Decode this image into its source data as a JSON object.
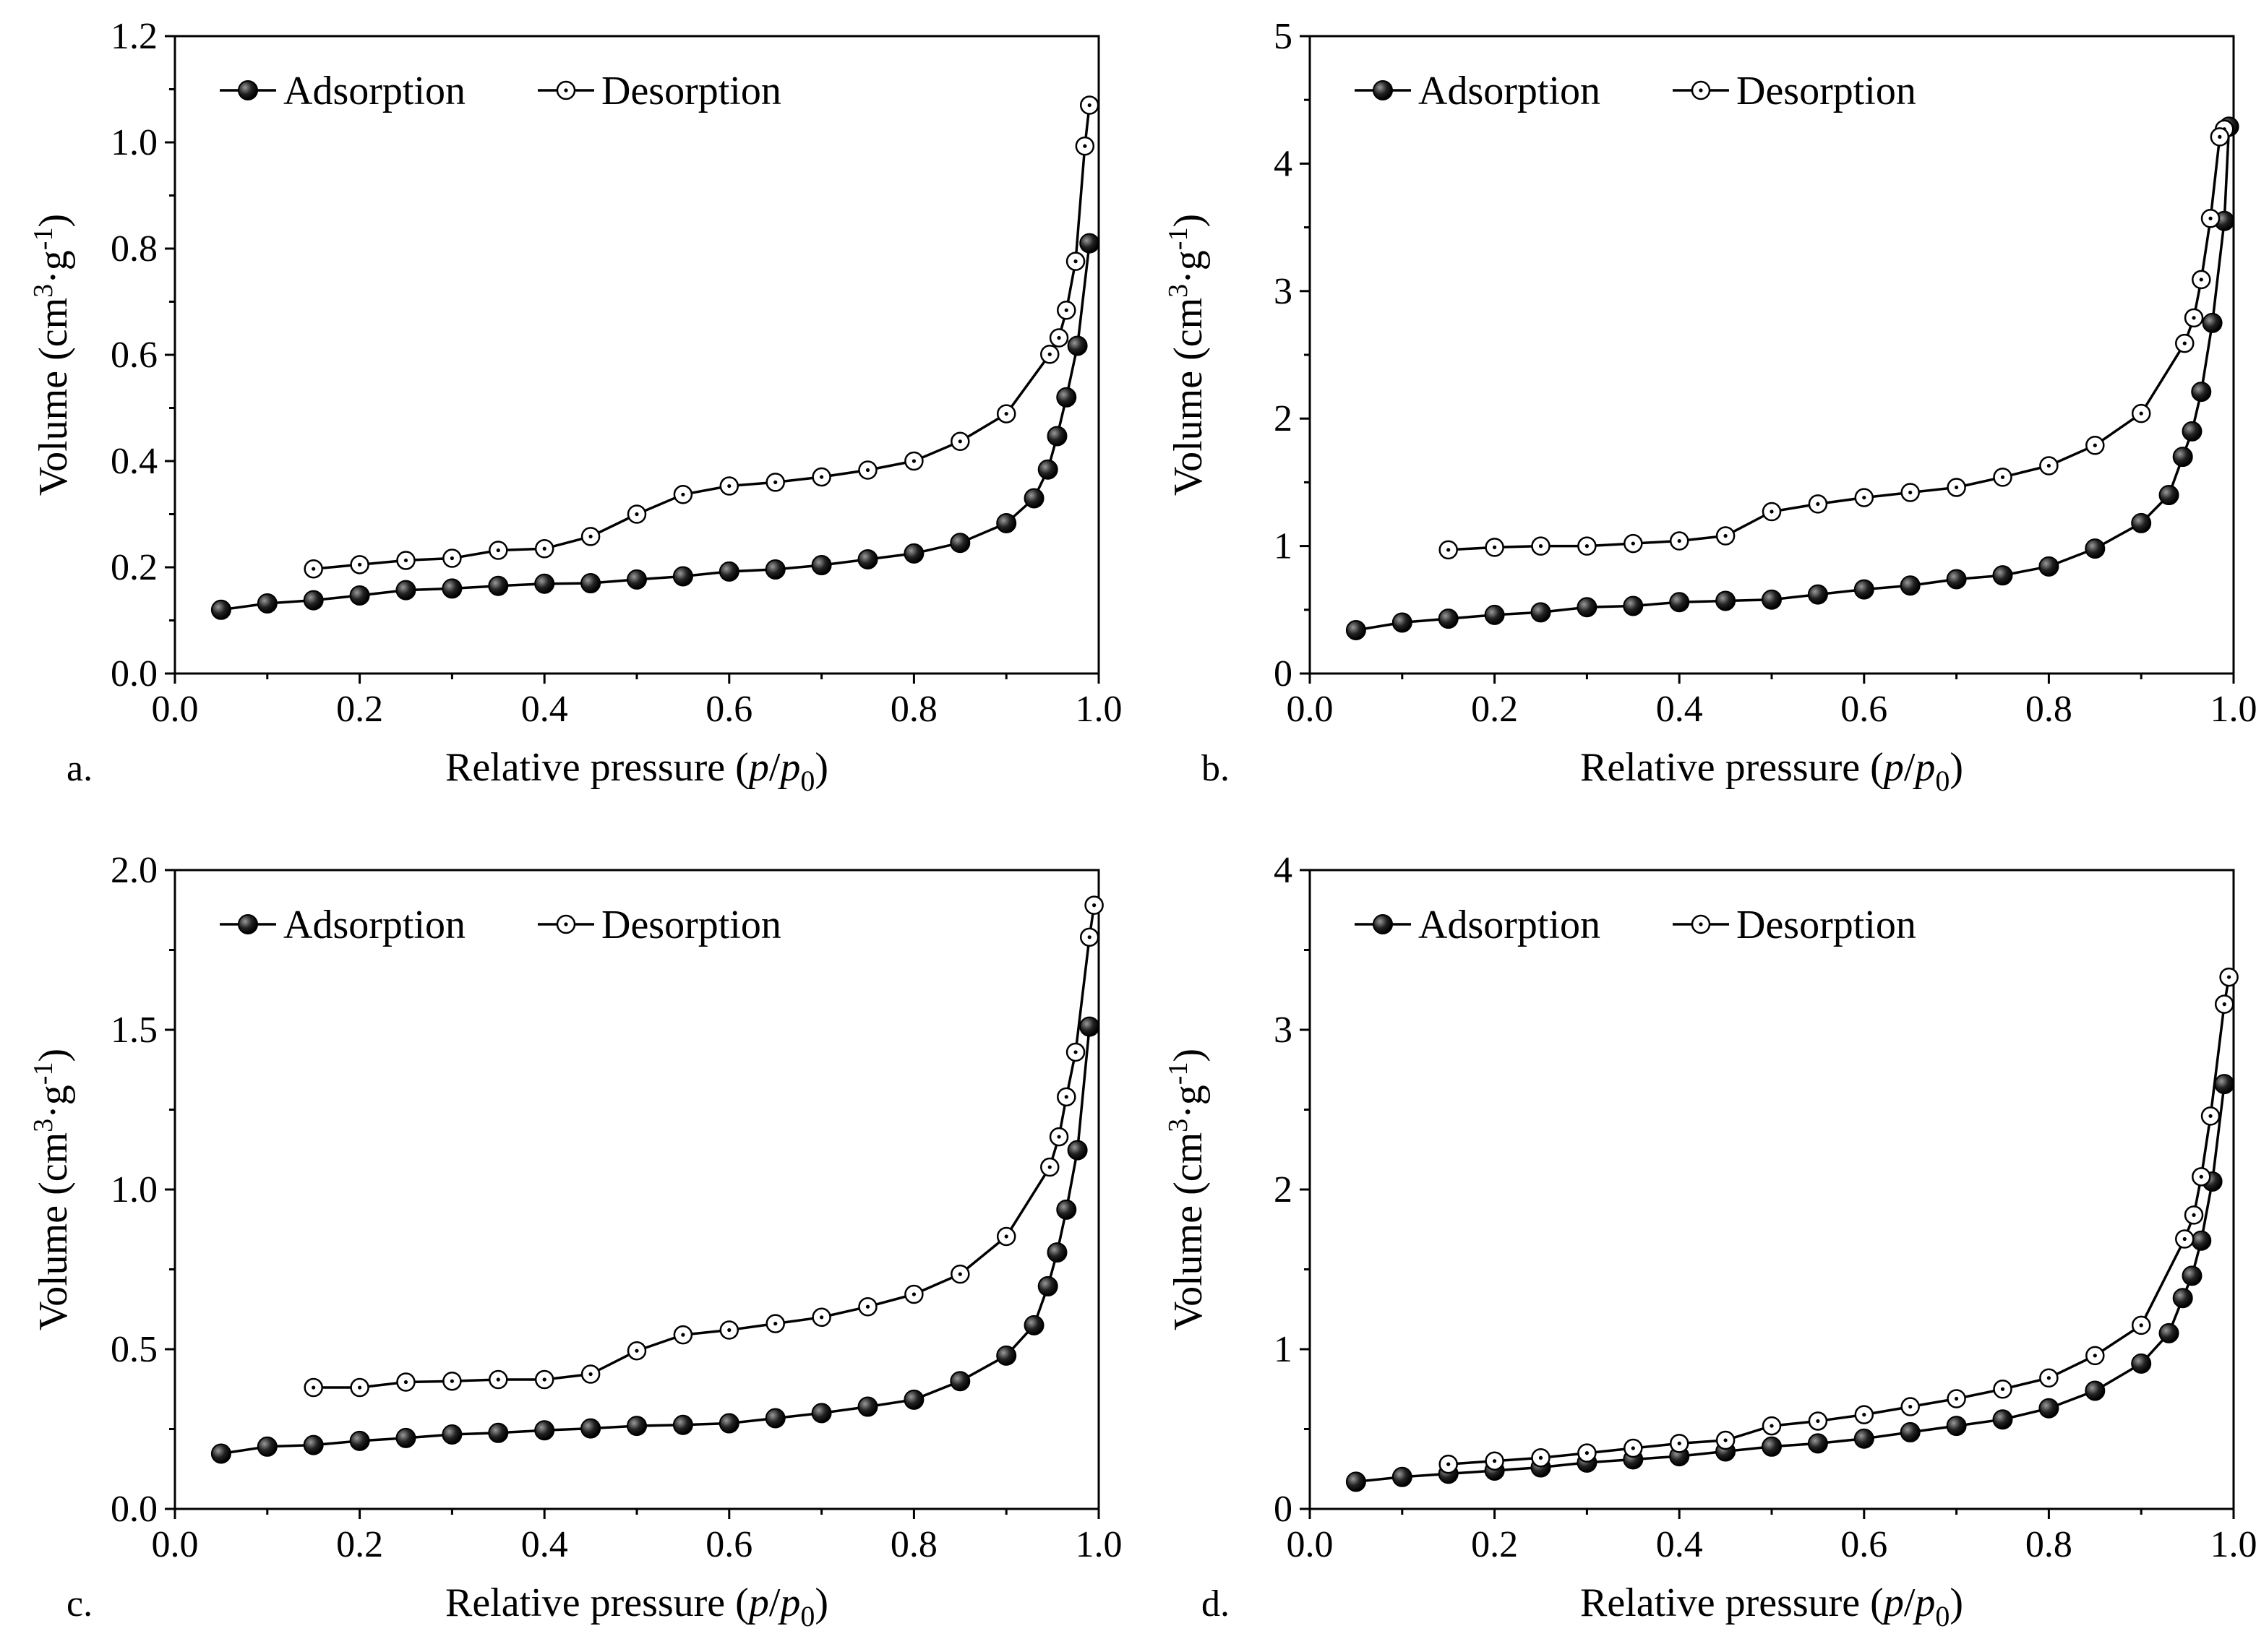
{
  "chart_data": [
    {
      "type": "line",
      "panel_label": "a.",
      "xlabel": "Relative pressure (p/p0)",
      "ylabel": "Volume (cm3·g-1)",
      "xlim": [
        0,
        1.0
      ],
      "ylim": [
        0,
        1.2
      ],
      "xticks": [
        "0.0",
        "0.2",
        "0.4",
        "0.6",
        "0.8",
        "1.0"
      ],
      "yticks": [
        "0.0",
        "0.2",
        "0.4",
        "0.6",
        "0.8",
        "1.0",
        "1.2"
      ],
      "xtick_values": [
        0,
        0.2,
        0.4,
        0.6,
        0.8,
        1.0
      ],
      "ytick_values": [
        0,
        0.2,
        0.4,
        0.6,
        0.8,
        1.0,
        1.2
      ],
      "legend": {
        "position": "top-left",
        "entries": [
          "Adsorption",
          "Desorption"
        ]
      },
      "series": [
        {
          "name": "Adsorption",
          "marker": "filled",
          "x": [
            0.05,
            0.1,
            0.15,
            0.2,
            0.25,
            0.3,
            0.35,
            0.4,
            0.45,
            0.5,
            0.55,
            0.6,
            0.65,
            0.7,
            0.75,
            0.8,
            0.85,
            0.9,
            0.93,
            0.945,
            0.955,
            0.965,
            0.977,
            0.99
          ],
          "y": [
            0.12,
            0.132,
            0.138,
            0.147,
            0.157,
            0.16,
            0.165,
            0.169,
            0.17,
            0.177,
            0.183,
            0.192,
            0.196,
            0.204,
            0.215,
            0.226,
            0.246,
            0.283,
            0.33,
            0.384,
            0.447,
            0.52,
            0.617,
            0.81
          ]
        },
        {
          "name": "Desorption",
          "marker": "open",
          "x": [
            0.99,
            0.985,
            0.975,
            0.965,
            0.957,
            0.947,
            0.9,
            0.85,
            0.8,
            0.75,
            0.7,
            0.65,
            0.6,
            0.55,
            0.5,
            0.45,
            0.4,
            0.35,
            0.3,
            0.25,
            0.2,
            0.15
          ],
          "y": [
            1.07,
            0.993,
            0.776,
            0.684,
            0.632,
            0.601,
            0.489,
            0.437,
            0.4,
            0.383,
            0.37,
            0.36,
            0.353,
            0.337,
            0.3,
            0.258,
            0.235,
            0.232,
            0.217,
            0.213,
            0.205,
            0.197
          ]
        }
      ]
    },
    {
      "type": "line",
      "panel_label": "b.",
      "xlabel": "Relative pressure (p/p0)",
      "ylabel": "Volume (cm3·g-1)",
      "xlim": [
        0,
        1.0
      ],
      "ylim": [
        0,
        5
      ],
      "xticks": [
        "0.0",
        "0.2",
        "0.4",
        "0.6",
        "0.8",
        "1.0"
      ],
      "yticks": [
        "0",
        "1",
        "2",
        "3",
        "4",
        "5"
      ],
      "xtick_values": [
        0,
        0.2,
        0.4,
        0.6,
        0.8,
        1.0
      ],
      "ytick_values": [
        0,
        1,
        2,
        3,
        4,
        5
      ],
      "legend": {
        "position": "top-left",
        "entries": [
          "Adsorption",
          "Desorption"
        ]
      },
      "series": [
        {
          "name": "Adsorption",
          "marker": "filled",
          "x": [
            0.05,
            0.1,
            0.15,
            0.2,
            0.25,
            0.3,
            0.35,
            0.4,
            0.45,
            0.5,
            0.55,
            0.6,
            0.65,
            0.7,
            0.75,
            0.8,
            0.85,
            0.9,
            0.93,
            0.945,
            0.955,
            0.965,
            0.977,
            0.99,
            0.995
          ],
          "y": [
            0.34,
            0.4,
            0.43,
            0.46,
            0.48,
            0.52,
            0.53,
            0.56,
            0.57,
            0.58,
            0.62,
            0.66,
            0.69,
            0.74,
            0.77,
            0.84,
            0.98,
            1.18,
            1.4,
            1.7,
            1.9,
            2.21,
            2.75,
            3.55,
            4.29
          ]
        },
        {
          "name": "Desorption",
          "marker": "open",
          "x": [
            0.99,
            0.985,
            0.975,
            0.965,
            0.957,
            0.947,
            0.9,
            0.85,
            0.8,
            0.75,
            0.7,
            0.65,
            0.6,
            0.55,
            0.5,
            0.45,
            0.4,
            0.35,
            0.3,
            0.25,
            0.2,
            0.15
          ],
          "y": [
            4.27,
            4.21,
            3.57,
            3.09,
            2.79,
            2.59,
            2.04,
            1.79,
            1.63,
            1.54,
            1.46,
            1.42,
            1.38,
            1.33,
            1.27,
            1.08,
            1.04,
            1.02,
            1.0,
            1.0,
            0.99,
            0.97
          ]
        }
      ]
    },
    {
      "type": "line",
      "panel_label": "c.",
      "xlabel": "Relative pressure (p/p0)",
      "ylabel": "Volume (cm3·g-1)",
      "xlim": [
        0,
        1.0
      ],
      "ylim": [
        0,
        2.0
      ],
      "xticks": [
        "0.0",
        "0.2",
        "0.4",
        "0.6",
        "0.8",
        "1.0"
      ],
      "yticks": [
        "0.0",
        "0.5",
        "1.0",
        "1.5",
        "2.0"
      ],
      "xtick_values": [
        0,
        0.2,
        0.4,
        0.6,
        0.8,
        1.0
      ],
      "ytick_values": [
        0,
        0.5,
        1.0,
        1.5,
        2.0
      ],
      "legend": {
        "position": "top-left",
        "entries": [
          "Adsorption",
          "Desorption"
        ]
      },
      "series": [
        {
          "name": "Adsorption",
          "marker": "filled",
          "x": [
            0.05,
            0.1,
            0.15,
            0.2,
            0.25,
            0.3,
            0.35,
            0.4,
            0.45,
            0.5,
            0.55,
            0.6,
            0.65,
            0.7,
            0.75,
            0.8,
            0.85,
            0.9,
            0.93,
            0.945,
            0.955,
            0.965,
            0.977,
            0.99
          ],
          "y": [
            0.173,
            0.195,
            0.2,
            0.213,
            0.222,
            0.233,
            0.238,
            0.246,
            0.252,
            0.26,
            0.263,
            0.268,
            0.284,
            0.3,
            0.32,
            0.342,
            0.4,
            0.48,
            0.575,
            0.697,
            0.803,
            0.937,
            1.123,
            1.51
          ]
        },
        {
          "name": "Desorption",
          "marker": "open",
          "x": [
            0.995,
            0.99,
            0.975,
            0.965,
            0.957,
            0.947,
            0.9,
            0.85,
            0.8,
            0.75,
            0.7,
            0.65,
            0.6,
            0.55,
            0.5,
            0.45,
            0.4,
            0.35,
            0.3,
            0.25,
            0.2,
            0.15
          ],
          "y": [
            1.89,
            1.79,
            1.43,
            1.29,
            1.165,
            1.07,
            0.853,
            0.735,
            0.672,
            0.633,
            0.6,
            0.58,
            0.56,
            0.545,
            0.495,
            0.422,
            0.405,
            0.405,
            0.4,
            0.397,
            0.38,
            0.38
          ]
        }
      ]
    },
    {
      "type": "line",
      "panel_label": "d.",
      "xlabel": "Relative pressure (p/p0)",
      "ylabel": "Volume (cm3·g-1)",
      "xlim": [
        0,
        1.0
      ],
      "ylim": [
        0,
        4
      ],
      "xticks": [
        "0.0",
        "0.2",
        "0.4",
        "0.6",
        "0.8",
        "1.0"
      ],
      "yticks": [
        "0",
        "1",
        "2",
        "3",
        "4"
      ],
      "xtick_values": [
        0,
        0.2,
        0.4,
        0.6,
        0.8,
        1.0
      ],
      "ytick_values": [
        0,
        1,
        2,
        3,
        4
      ],
      "legend": {
        "position": "top-left",
        "entries": [
          "Adsorption",
          "Desorption"
        ]
      },
      "series": [
        {
          "name": "Adsorption",
          "marker": "filled",
          "x": [
            0.05,
            0.1,
            0.15,
            0.2,
            0.25,
            0.3,
            0.35,
            0.4,
            0.45,
            0.5,
            0.55,
            0.6,
            0.65,
            0.7,
            0.75,
            0.8,
            0.85,
            0.9,
            0.93,
            0.945,
            0.955,
            0.965,
            0.977,
            0.99
          ],
          "y": [
            0.17,
            0.2,
            0.22,
            0.24,
            0.26,
            0.29,
            0.31,
            0.33,
            0.36,
            0.39,
            0.41,
            0.44,
            0.48,
            0.52,
            0.56,
            0.63,
            0.74,
            0.91,
            1.1,
            1.32,
            1.46,
            1.68,
            2.05,
            2.66
          ]
        },
        {
          "name": "Desorption",
          "marker": "open",
          "x": [
            0.995,
            0.99,
            0.975,
            0.965,
            0.957,
            0.947,
            0.9,
            0.85,
            0.8,
            0.75,
            0.7,
            0.65,
            0.6,
            0.55,
            0.5,
            0.45,
            0.4,
            0.35,
            0.3,
            0.25,
            0.2,
            0.15
          ],
          "y": [
            3.33,
            3.16,
            2.46,
            2.08,
            1.84,
            1.69,
            1.15,
            0.96,
            0.82,
            0.75,
            0.69,
            0.64,
            0.59,
            0.55,
            0.52,
            0.43,
            0.41,
            0.38,
            0.35,
            0.32,
            0.3,
            0.28
          ]
        }
      ]
    }
  ]
}
